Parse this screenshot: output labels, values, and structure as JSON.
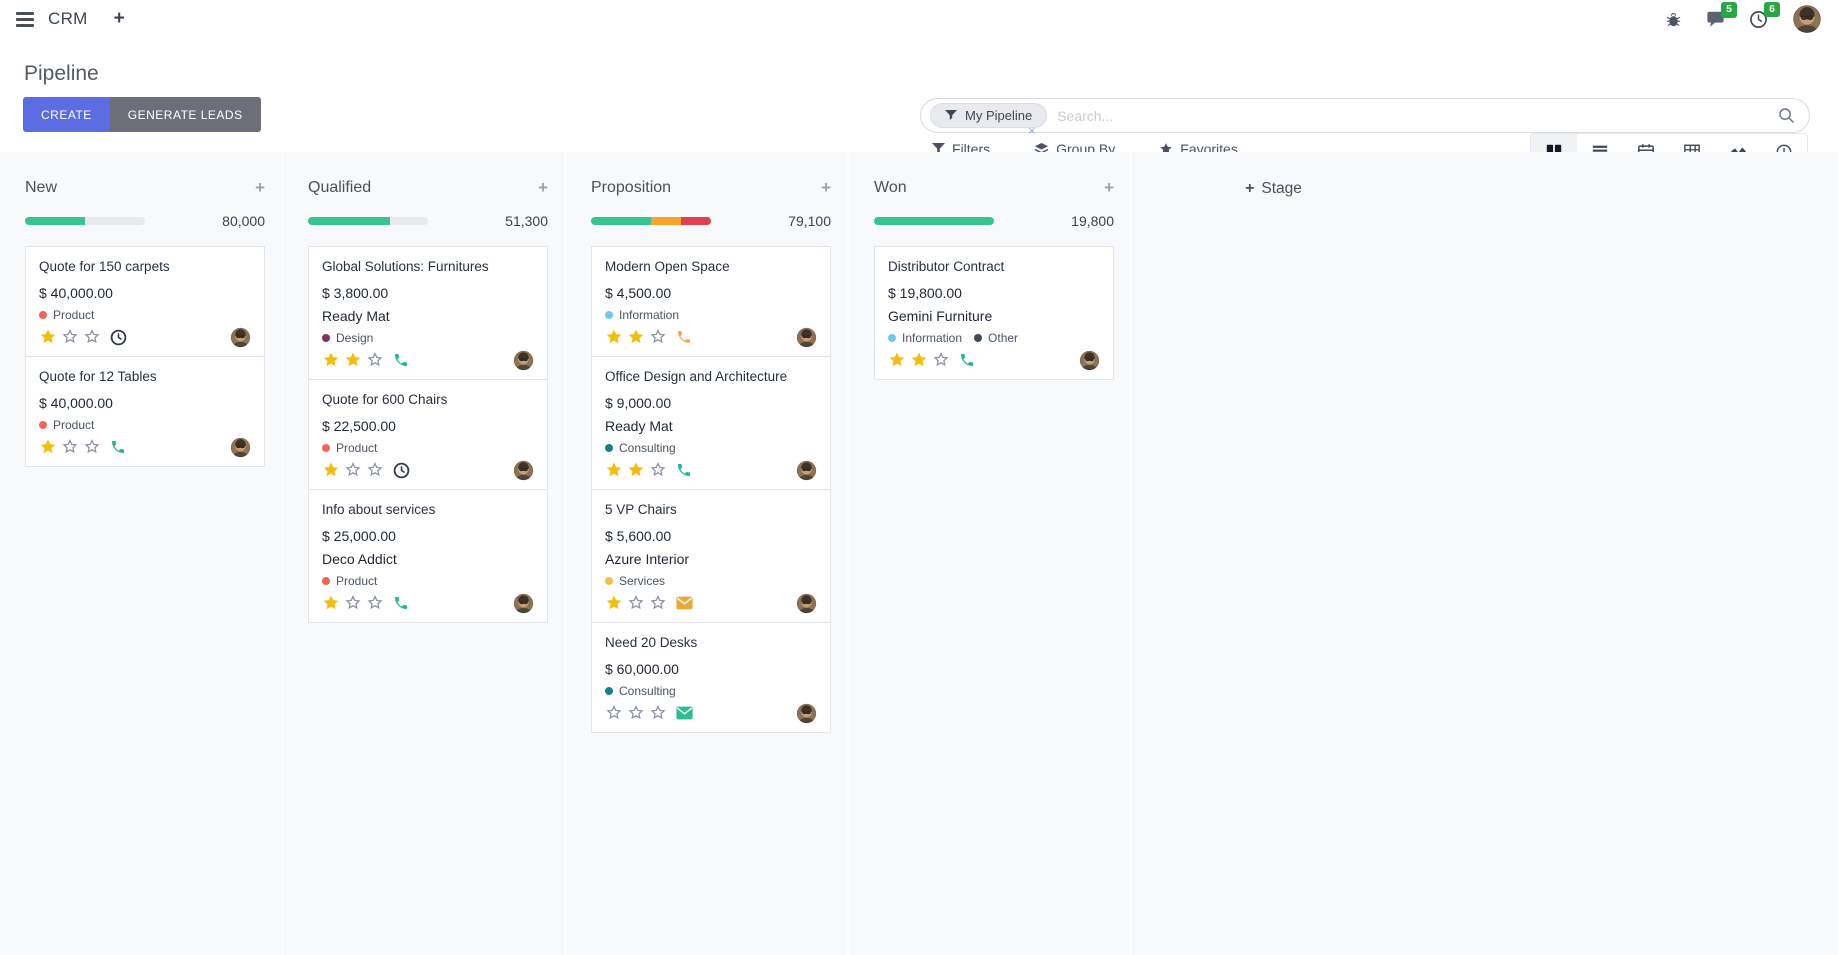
{
  "icons": {
    "plus": "+"
  },
  "navbar": {
    "app_name": "CRM",
    "message_badge": "5",
    "activity_badge": "6"
  },
  "control_panel": {
    "title": "Pipeline",
    "create_label": "CREATE",
    "generate_leads_label": "GENERATE LEADS",
    "filters_label": "Filters",
    "group_by_label": "Group By",
    "favorites_label": "Favorites",
    "search": {
      "facet_label": "My Pipeline",
      "facet_remove": "×",
      "placeholder": "Search..."
    }
  },
  "kanban": {
    "add_stage_label": "Stage",
    "columns": [
      {
        "name": "New",
        "total": "80,000",
        "progress": [
          {
            "pct": 50,
            "color": "#36c492"
          }
        ],
        "cards": [
          {
            "title": "Quote for 150 carpets",
            "amount": "$ 40,000.00",
            "partner": "",
            "tags": [
              {
                "label": "Product",
                "color": "#ef6659"
              }
            ],
            "stars": 1,
            "activity": {
              "type": "clock",
              "color": "#343b48"
            }
          },
          {
            "title": "Quote for 12 Tables",
            "amount": "$ 40,000.00",
            "partner": "",
            "tags": [
              {
                "label": "Product",
                "color": "#ef6659"
              }
            ],
            "stars": 1,
            "activity": {
              "type": "phone",
              "color": "#21b795"
            }
          }
        ]
      },
      {
        "name": "Qualified",
        "total": "51,300",
        "progress": [
          {
            "pct": 68,
            "color": "#36c492"
          }
        ],
        "cards": [
          {
            "title": "Global Solutions: Furnitures",
            "amount": "$ 3,800.00",
            "partner": "Ready Mat",
            "tags": [
              {
                "label": "Design",
                "color": "#7d335f"
              }
            ],
            "stars": 2,
            "activity": {
              "type": "phone",
              "color": "#21b795"
            }
          },
          {
            "title": "Quote for 600 Chairs",
            "amount": "$ 22,500.00",
            "partner": "",
            "tags": [
              {
                "label": "Product",
                "color": "#ef6659"
              }
            ],
            "stars": 1,
            "activity": {
              "type": "clock",
              "color": "#343b48"
            }
          },
          {
            "title": "Info about services",
            "amount": "$ 25,000.00",
            "partner": "Deco Addict",
            "tags": [
              {
                "label": "Product",
                "color": "#ef6659"
              }
            ],
            "stars": 1,
            "activity": {
              "type": "phone",
              "color": "#21b795"
            }
          }
        ]
      },
      {
        "name": "Proposition",
        "total": "79,100",
        "progress": [
          {
            "pct": 50,
            "color": "#36c492"
          },
          {
            "pct": 25,
            "color": "#f4a52a"
          },
          {
            "pct": 25,
            "color": "#e0404f"
          }
        ],
        "cards": [
          {
            "title": "Modern Open Space",
            "amount": "$ 4,500.00",
            "partner": "",
            "tags": [
              {
                "label": "Information",
                "color": "#6ec7ef"
              }
            ],
            "stars": 2,
            "activity": {
              "type": "phone",
              "color": "#f2ac4b"
            }
          },
          {
            "title": "Office Design and Architecture",
            "amount": "$ 9,000.00",
            "partner": "Ready Mat",
            "tags": [
              {
                "label": "Consulting",
                "color": "#17808a"
              }
            ],
            "stars": 2,
            "activity": {
              "type": "phone",
              "color": "#21b795"
            }
          },
          {
            "title": "5 VP Chairs",
            "amount": "$ 5,600.00",
            "partner": "Azure Interior",
            "tags": [
              {
                "label": "Services",
                "color": "#f0c43e"
              }
            ],
            "stars": 1,
            "activity": {
              "type": "mail",
              "color": "#eda638"
            }
          },
          {
            "title": "Need 20 Desks",
            "amount": "$ 60,000.00",
            "partner": "",
            "tags": [
              {
                "label": "Consulting",
                "color": "#17808a"
              }
            ],
            "stars": 0,
            "activity": {
              "type": "mail",
              "color": "#2bbf8f"
            }
          }
        ]
      },
      {
        "name": "Won",
        "total": "19,800",
        "progress": [
          {
            "pct": 100,
            "color": "#36c492"
          }
        ],
        "cards": [
          {
            "title": "Distributor Contract",
            "amount": "$ 19,800.00",
            "partner": "Gemini Furniture",
            "tags": [
              {
                "label": "Information",
                "color": "#6ec7ef"
              },
              {
                "label": "Other",
                "color": "#40495a"
              }
            ],
            "stars": 2,
            "activity": {
              "type": "phone",
              "color": "#21b795"
            }
          }
        ]
      }
    ]
  },
  "colors": {
    "primary_button": "#5c6ce3",
    "secondary_button": "#6e6e79",
    "badge_green": "#28a745",
    "progress_track": "#e7e9ec",
    "star_filled": "#f2bd0e",
    "star_empty": "#8d93a0",
    "kanban_bg": "#f8f9fb"
  }
}
